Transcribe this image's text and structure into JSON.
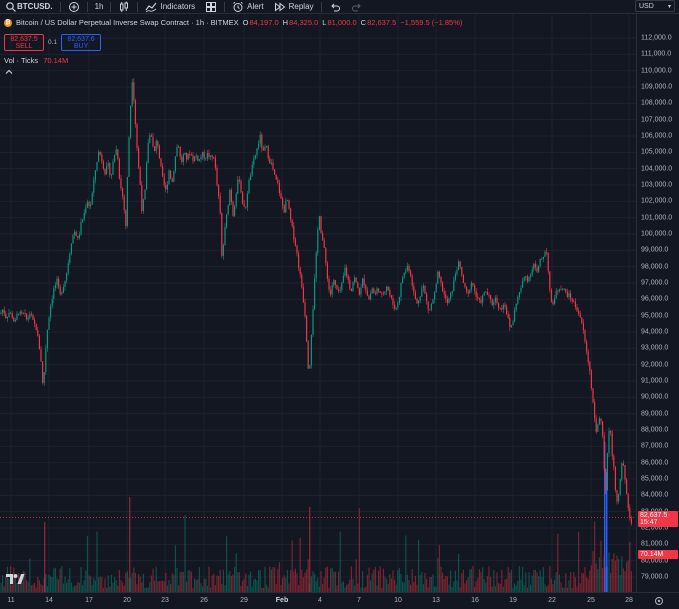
{
  "toolbar": {
    "symbol": "BTCUSD.",
    "interval": "1h",
    "indicators_label": "Indicators",
    "alert_label": "Alert",
    "replay_label": "Replay",
    "currency": "USD"
  },
  "legend": {
    "title": "Bitcoin / US Dollar Perpetual Inverse Swap Contract · 1h · BITMEX",
    "o_label": "O",
    "o_value": "84,197.0",
    "h_label": "H",
    "h_value": "84,325.0",
    "l_label": "L",
    "l_value": "81,000.0",
    "c_label": "C",
    "c_value": "82,637.5",
    "change": "−1,559.5 (−1.85%)",
    "sell_price": "82,637.5",
    "sell_label": "SELL",
    "spread": "0.1",
    "buy_price": "82,637.6",
    "buy_label": "BUY",
    "vol_label": "Vol · Ticks",
    "vol_value": "70.14M"
  },
  "price_tag": {
    "price": "82,637.5",
    "countdown": "15:47",
    "volume": "70.14M"
  },
  "colors": {
    "up": "#089981",
    "down": "#f23645",
    "background": "#131722",
    "grid": "#1e222d"
  },
  "icons": [
    "search-icon",
    "plus-icon",
    "candles-icon",
    "indicators-icon",
    "templates-icon",
    "alert-icon",
    "replay-icon",
    "undo-icon",
    "redo-icon",
    "tradingview-logo",
    "settings-icon"
  ],
  "chart_data": {
    "type": "candlestick",
    "ylim": [
      78500,
      112500
    ],
    "price_ticks": [
      "112,000.0",
      "111,000.0",
      "110,000.0",
      "109,000.0",
      "108,000.0",
      "107,000.0",
      "106,000.0",
      "105,000.0",
      "104,000.0",
      "103,000.0",
      "102,000.0",
      "101,000.0",
      "100,000.0",
      "99,000.0",
      "98,000.0",
      "97,000.0",
      "96,000.0",
      "95,000.0",
      "94,000.0",
      "93,000.0",
      "92,000.0",
      "91,000.0",
      "90,000.0",
      "89,000.0",
      "88,000.0",
      "87,000.0",
      "86,000.0",
      "85,000.0",
      "84,000.0",
      "83,000.0",
      "82,000.0",
      "81,000.0",
      "80,000.0",
      "79,000.0"
    ],
    "time_ticks": [
      "11",
      "14",
      "17",
      "20",
      "23",
      "26",
      "29",
      "Feb",
      "4",
      "7",
      "10",
      "13",
      "16",
      "19",
      "22",
      "25",
      "28"
    ],
    "path_points": [
      [
        0,
        95100
      ],
      [
        3,
        95400
      ],
      [
        6,
        94900
      ],
      [
        9,
        95200
      ],
      [
        12,
        95000
      ],
      [
        15,
        94500
      ],
      [
        18,
        95300
      ],
      [
        21,
        95000
      ],
      [
        24,
        95100
      ],
      [
        27,
        94700
      ],
      [
        30,
        95200
      ],
      [
        33,
        94600
      ],
      [
        36,
        94300
      ],
      [
        39,
        93200
      ],
      [
        42,
        91800
      ],
      [
        43,
        90200
      ],
      [
        45,
        92500
      ],
      [
        48,
        94600
      ],
      [
        51,
        95800
      ],
      [
        54,
        96700
      ],
      [
        57,
        97100
      ],
      [
        60,
        96200
      ],
      [
        63,
        96800
      ],
      [
        66,
        97400
      ],
      [
        69,
        98600
      ],
      [
        72,
        99800
      ],
      [
        75,
        100200
      ],
      [
        78,
        99600
      ],
      [
        81,
        100600
      ],
      [
        84,
        101200
      ],
      [
        87,
        102100
      ],
      [
        90,
        101600
      ],
      [
        93,
        102800
      ],
      [
        96,
        104200
      ],
      [
        99,
        105100
      ],
      [
        102,
        104500
      ],
      [
        105,
        103800
      ],
      [
        108,
        104200
      ],
      [
        111,
        103500
      ],
      [
        114,
        104800
      ],
      [
        117,
        105300
      ],
      [
        120,
        103100
      ],
      [
        123,
        102200
      ],
      [
        126,
        100400
      ],
      [
        128,
        104700
      ],
      [
        130,
        107200
      ],
      [
        132,
        109600
      ],
      [
        134,
        108200
      ],
      [
        136,
        106200
      ],
      [
        138,
        104400
      ],
      [
        140,
        103200
      ],
      [
        142,
        101400
      ],
      [
        145,
        102600
      ],
      [
        148,
        105600
      ],
      [
        151,
        106300
      ],
      [
        154,
        104800
      ],
      [
        157,
        105900
      ],
      [
        160,
        104400
      ],
      [
        163,
        103200
      ],
      [
        166,
        102600
      ],
      [
        169,
        103900
      ],
      [
        172,
        103100
      ],
      [
        175,
        104600
      ],
      [
        178,
        105700
      ],
      [
        181,
        104300
      ],
      [
        184,
        104900
      ],
      [
        187,
        104600
      ],
      [
        190,
        105000
      ],
      [
        193,
        104600
      ],
      [
        196,
        104800
      ],
      [
        199,
        104500
      ],
      [
        202,
        104900
      ],
      [
        205,
        104700
      ],
      [
        208,
        104900
      ],
      [
        211,
        104600
      ],
      [
        214,
        104800
      ],
      [
        217,
        103000
      ],
      [
        220,
        101500
      ],
      [
        222,
        98300
      ],
      [
        224,
        99800
      ],
      [
        227,
        101300
      ],
      [
        230,
        102800
      ],
      [
        233,
        101200
      ],
      [
        236,
        102500
      ],
      [
        239,
        103600
      ],
      [
        242,
        102100
      ],
      [
        245,
        101300
      ],
      [
        248,
        102900
      ],
      [
        251,
        103800
      ],
      [
        254,
        104500
      ],
      [
        257,
        105200
      ],
      [
        260,
        106000
      ],
      [
        263,
        104900
      ],
      [
        266,
        105400
      ],
      [
        269,
        104600
      ],
      [
        272,
        104200
      ],
      [
        275,
        103400
      ],
      [
        278,
        103000
      ],
      [
        281,
        102100
      ],
      [
        284,
        101400
      ],
      [
        287,
        102200
      ],
      [
        290,
        101000
      ],
      [
        293,
        100100
      ],
      [
        296,
        99200
      ],
      [
        299,
        97900
      ],
      [
        302,
        96700
      ],
      [
        305,
        95100
      ],
      [
        307,
        93200
      ],
      [
        309,
        91100
      ],
      [
        311,
        93600
      ],
      [
        313,
        95500
      ],
      [
        315,
        97600
      ],
      [
        317,
        99400
      ],
      [
        319,
        101500
      ],
      [
        321,
        100200
      ],
      [
        324,
        99100
      ],
      [
        327,
        97600
      ],
      [
        330,
        96100
      ],
      [
        333,
        97200
      ],
      [
        336,
        96700
      ],
      [
        339,
        96300
      ],
      [
        342,
        96900
      ],
      [
        345,
        97900
      ],
      [
        348,
        97200
      ],
      [
        351,
        96500
      ],
      [
        354,
        97400
      ],
      [
        357,
        96800
      ],
      [
        360,
        96300
      ],
      [
        363,
        97300
      ],
      [
        366,
        96600
      ],
      [
        369,
        96000
      ],
      [
        372,
        96700
      ],
      [
        375,
        96200
      ],
      [
        378,
        96800
      ],
      [
        381,
        96100
      ],
      [
        384,
        96500
      ],
      [
        387,
        96900
      ],
      [
        390,
        96200
      ],
      [
        393,
        95700
      ],
      [
        396,
        95400
      ],
      [
        399,
        96100
      ],
      [
        402,
        97300
      ],
      [
        405,
        97700
      ],
      [
        408,
        98100
      ],
      [
        411,
        97400
      ],
      [
        414,
        96300
      ],
      [
        417,
        95700
      ],
      [
        420,
        96300
      ],
      [
        423,
        96900
      ],
      [
        426,
        96000
      ],
      [
        429,
        95200
      ],
      [
        432,
        95800
      ],
      [
        435,
        96400
      ],
      [
        438,
        97600
      ],
      [
        441,
        96900
      ],
      [
        444,
        96300
      ],
      [
        447,
        95700
      ],
      [
        450,
        96100
      ],
      [
        453,
        96800
      ],
      [
        456,
        97800
      ],
      [
        459,
        98200
      ],
      [
        462,
        97400
      ],
      [
        465,
        96600
      ],
      [
        468,
        96200
      ],
      [
        471,
        97100
      ],
      [
        474,
        96700
      ],
      [
        477,
        96000
      ],
      [
        480,
        95800
      ],
      [
        483,
        96200
      ],
      [
        486,
        96500
      ],
      [
        489,
        96100
      ],
      [
        492,
        95700
      ],
      [
        495,
        96100
      ],
      [
        498,
        95700
      ],
      [
        501,
        95300
      ],
      [
        504,
        95900
      ],
      [
        507,
        95100
      ],
      [
        510,
        94200
      ],
      [
        513,
        94700
      ],
      [
        516,
        95800
      ],
      [
        519,
        96300
      ],
      [
        522,
        96900
      ],
      [
        525,
        97500
      ],
      [
        528,
        97200
      ],
      [
        531,
        97700
      ],
      [
        534,
        98200
      ],
      [
        537,
        97600
      ],
      [
        540,
        98300
      ],
      [
        543,
        98600
      ],
      [
        546,
        99200
      ],
      [
        548,
        98000
      ],
      [
        550,
        96400
      ],
      [
        552,
        95400
      ],
      [
        554,
        96100
      ],
      [
        557,
        96500
      ],
      [
        560,
        96800
      ],
      [
        563,
        96600
      ],
      [
        566,
        96400
      ],
      [
        569,
        96200
      ],
      [
        572,
        96000
      ],
      [
        575,
        95600
      ],
      [
        578,
        95300
      ],
      [
        581,
        94800
      ],
      [
        584,
        93800
      ],
      [
        587,
        92600
      ],
      [
        590,
        91600
      ],
      [
        592,
        90300
      ],
      [
        594,
        89200
      ],
      [
        596,
        87700
      ],
      [
        598,
        88400
      ],
      [
        600,
        89000
      ],
      [
        602,
        88300
      ],
      [
        604,
        85800
      ],
      [
        606,
        84300
      ],
      [
        608,
        87400
      ],
      [
        610,
        88600
      ],
      [
        612,
        86500
      ],
      [
        614,
        85600
      ],
      [
        616,
        84000
      ],
      [
        618,
        83600
      ],
      [
        620,
        84700
      ],
      [
        622,
        86100
      ],
      [
        624,
        85500
      ],
      [
        626,
        84300
      ],
      [
        628,
        83100
      ],
      [
        630,
        82600
      ],
      [
        632,
        82300
      ]
    ],
    "current_price": 82637.5
  }
}
